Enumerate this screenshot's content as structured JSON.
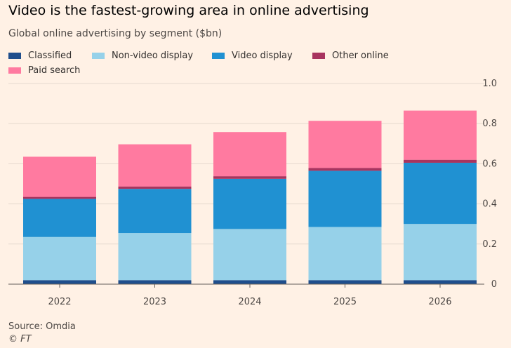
{
  "chart_data": {
    "type": "bar",
    "stacked": true,
    "title": "Video is the fastest-growing area in online advertising",
    "subtitle": "Global online advertising by segment ($bn)",
    "categories": [
      "2022",
      "2023",
      "2024",
      "2025",
      "2026"
    ],
    "series": [
      {
        "name": "Classified",
        "color": "#1f4e8c",
        "values": [
          0.02,
          0.02,
          0.02,
          0.02,
          0.02
        ]
      },
      {
        "name": "Non-video display",
        "color": "#96d1e9",
        "values": [
          0.215,
          0.235,
          0.255,
          0.265,
          0.28
        ]
      },
      {
        "name": "Video display",
        "color": "#2091d2",
        "values": [
          0.19,
          0.22,
          0.25,
          0.28,
          0.305
        ]
      },
      {
        "name": "Other online",
        "color": "#a8345f",
        "values": [
          0.01,
          0.012,
          0.013,
          0.014,
          0.015
        ]
      },
      {
        "name": "Paid search",
        "color": "#ff7aa0",
        "values": [
          0.2,
          0.21,
          0.22,
          0.235,
          0.245
        ]
      }
    ],
    "ylim": [
      0,
      1.0
    ],
    "yticks": [
      "0",
      "0.2",
      "0.4",
      "0.6",
      "0.8",
      "1.0"
    ],
    "grid": true,
    "legend_position": "top",
    "source": "Source: Omdia",
    "credit": "© FT"
  }
}
